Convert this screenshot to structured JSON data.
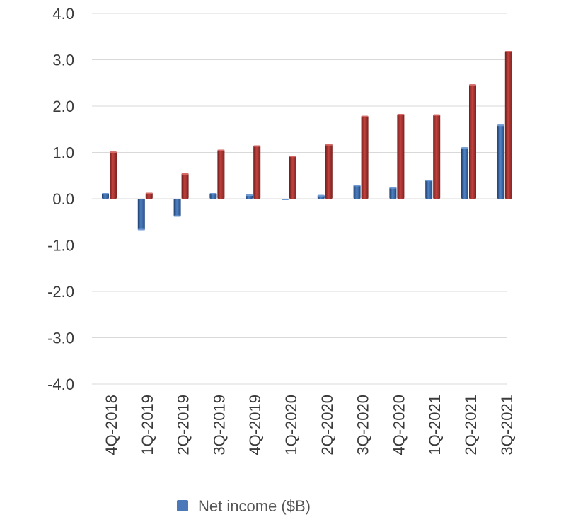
{
  "chart_data": {
    "type": "bar",
    "title": "",
    "xlabel": "",
    "ylabel": "",
    "ylim": [
      -4.0,
      4.0
    ],
    "yticks": [
      "4.0",
      "3.0",
      "2.0",
      "1.0",
      "0.0",
      "-1.0",
      "-2.0",
      "-3.0",
      "-4.0"
    ],
    "ytick_values": [
      4,
      3,
      2,
      1,
      0,
      -1,
      -2,
      -3,
      -4
    ],
    "grid": true,
    "legend_position": "bottom",
    "categories": [
      "4Q-2018",
      "1Q-2019",
      "2Q-2019",
      "3Q-2019",
      "4Q-2019",
      "1Q-2020",
      "2Q-2020",
      "3Q-2020",
      "4Q-2020",
      "1Q-2021",
      "2Q-2021",
      "3Q-2021"
    ],
    "series": [
      {
        "name": "Net income ($B)",
        "color": "#3d6aa8",
        "values": [
          0.12,
          -0.68,
          -0.39,
          0.12,
          0.09,
          0.0,
          0.08,
          0.3,
          0.25,
          0.41,
          1.11,
          1.6
        ],
        "show_in_legend": true
      },
      {
        "name": "",
        "color": "#a23330",
        "values": [
          1.02,
          0.13,
          0.55,
          1.06,
          1.15,
          0.93,
          1.18,
          1.79,
          1.83,
          1.82,
          2.47,
          3.19
        ],
        "show_in_legend": false
      }
    ]
  },
  "legend": {
    "label": "Net income ($B)",
    "color": "#4a78b8"
  }
}
